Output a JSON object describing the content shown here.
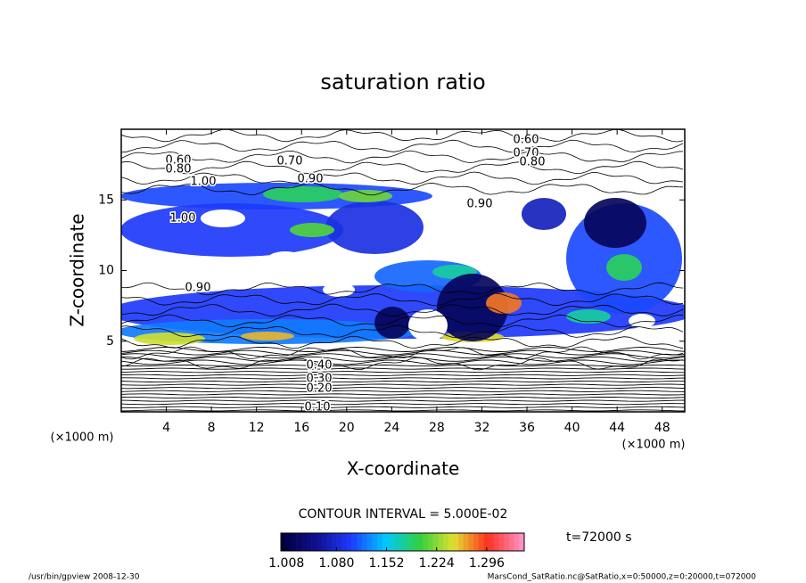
{
  "chart_data": {
    "type": "contour",
    "title": "saturation ratio",
    "x_label": "X-coordinate",
    "y_label": "Z-coordinate",
    "x_unit": "(×1000 m)",
    "xlim": [
      0,
      50
    ],
    "xticks": [
      4,
      8,
      12,
      16,
      20,
      24,
      28,
      32,
      36,
      40,
      44,
      48
    ],
    "ylim": [
      0,
      20
    ],
    "yticks": [
      5,
      10,
      15
    ],
    "contour_labels": [
      {
        "value": 0.6,
        "label": "0.60"
      },
      {
        "value": 0.8,
        "label": "0.80"
      },
      {
        "value": 1.0,
        "label": "1.00"
      },
      {
        "value": 0.7,
        "label": "0.70"
      },
      {
        "value": 0.9,
        "label": "0.90"
      },
      {
        "value": 0.6,
        "label": "0.60"
      },
      {
        "value": 0.7,
        "label": "0.70"
      },
      {
        "value": 0.8,
        "label": "0.80"
      },
      {
        "value": 0.9,
        "label": "0.90"
      },
      {
        "value": 0.9,
        "label": "0.90"
      },
      {
        "value": 1.0,
        "label": "1.00"
      },
      {
        "value": 0.4,
        "label": "0.40"
      },
      {
        "value": 0.3,
        "label": "0.30"
      },
      {
        "value": 0.2,
        "label": "0.20"
      },
      {
        "value": 0.1,
        "label": "0.10"
      }
    ],
    "annotation": "CONTOUR INTERVAL = 5.000E-02",
    "colorbar": {
      "lim": [
        1.0,
        1.35
      ],
      "ticks": [
        1.008,
        {
          "value": 1.08,
          "label": "1.080"
        },
        1.152,
        1.224,
        1.296
      ],
      "colormap": [
        "#000040",
        "#101090",
        "#1e3cff",
        "#00c8ff",
        "#30d040",
        "#e0e030",
        "#ff3020",
        "#ff90c0"
      ]
    },
    "time_label": "t=72000 s",
    "footer_left": "/usr/bin/gpview  2008-12-30",
    "footer_right": "MarsCond_SatRatio.nc@SatRatio,x=0:50000,z=0:20000,t=072000"
  }
}
